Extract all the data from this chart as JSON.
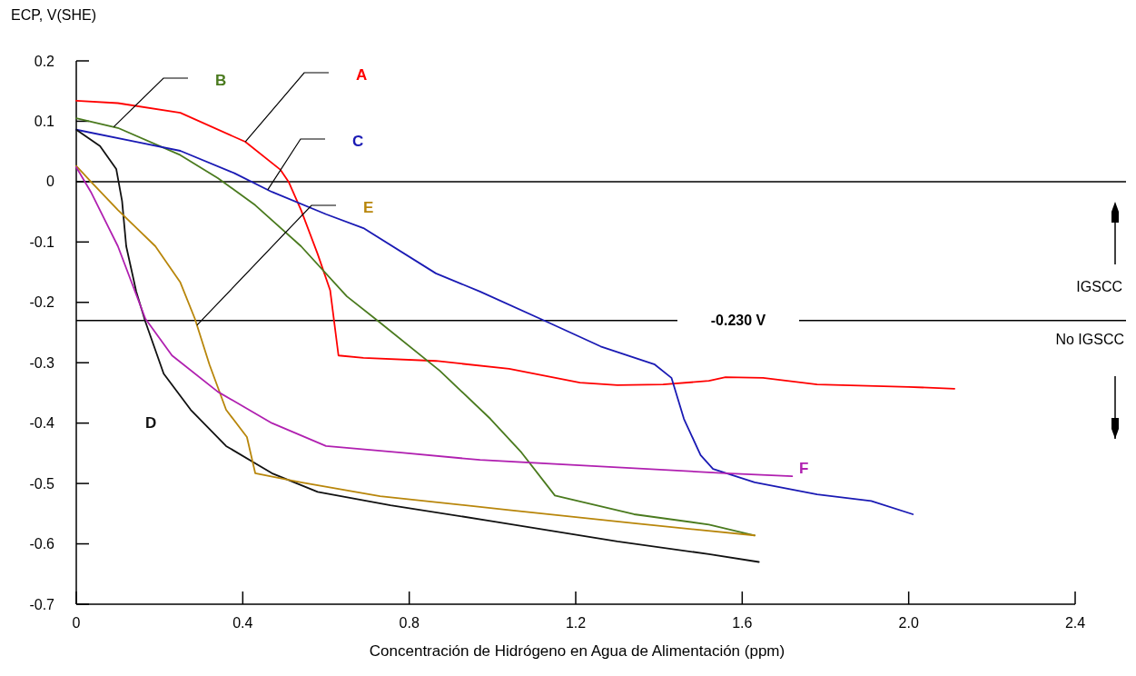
{
  "chart_data": {
    "type": "line",
    "xlabel": "Concentración de Hidrógeno en Agua de Alimentación (ppm)",
    "ylabel": "ECP, V(SHE)",
    "xlim": [
      0,
      2.4
    ],
    "xticks": [
      0,
      0.4,
      0.8,
      1.2,
      1.6,
      {
        "value": 2.0,
        "label": "2.0"
      },
      2.4
    ],
    "ylim": [
      -0.7,
      0.2
    ],
    "yticks": [
      0.2,
      0.1,
      0,
      -0.1,
      -0.2,
      -0.3,
      -0.4,
      -0.5,
      -0.6,
      -0.7
    ],
    "grid": false,
    "line_style": "solid",
    "marker": "none",
    "series": [
      {
        "name": "A",
        "color": "#ff0000",
        "x": [
          0,
          0.1,
          0.25,
          0.406,
          0.49,
          0.51,
          0.54,
          0.58,
          0.61,
          0.63,
          0.69,
          0.864,
          1.04,
          1.21,
          1.3,
          1.41,
          1.52,
          1.56,
          1.65,
          1.78,
          2.0,
          2.11
        ],
        "values": [
          0.134,
          0.13,
          0.114,
          0.066,
          0.02,
          0,
          -0.047,
          -0.12,
          -0.18,
          -0.288,
          -0.292,
          -0.297,
          -0.31,
          -0.333,
          -0.337,
          -0.336,
          -0.33,
          -0.324,
          -0.325,
          -0.336,
          -0.34,
          -0.343
        ]
      },
      {
        "name": "B",
        "color": "#4a7a1e",
        "x": [
          0,
          0.1,
          0.25,
          0.34,
          0.43,
          0.54,
          0.65,
          0.727,
          0.873,
          0.995,
          1.07,
          1.15,
          1.18,
          1.34,
          1.52,
          1.63
        ],
        "values": [
          0.105,
          0.089,
          0.044,
          0.006,
          -0.039,
          -0.107,
          -0.19,
          -0.232,
          -0.313,
          -0.393,
          -0.449,
          -0.52,
          -0.525,
          -0.551,
          -0.568,
          -0.586
        ]
      },
      {
        "name": "C",
        "color": "#1a1ab4",
        "x": [
          0,
          0.144,
          0.25,
          0.38,
          0.47,
          0.6,
          0.69,
          0.864,
          0.97,
          1.13,
          1.26,
          1.39,
          1.43,
          1.46,
          1.5,
          1.53,
          1.63,
          1.78,
          1.91,
          2.01
        ],
        "values": [
          0.086,
          0.066,
          0.051,
          0.014,
          -0.017,
          -0.054,
          -0.077,
          -0.152,
          -0.182,
          -0.232,
          -0.273,
          -0.303,
          -0.325,
          -0.393,
          -0.453,
          -0.476,
          -0.498,
          -0.518,
          -0.529,
          -0.551
        ]
      },
      {
        "name": "D",
        "color": "#111111",
        "x": [
          0,
          0.057,
          0.096,
          0.11,
          0.12,
          0.144,
          0.166,
          0.21,
          0.275,
          0.36,
          0.47,
          0.58,
          0.755,
          0.995,
          1.3,
          1.52,
          1.64
        ],
        "values": [
          0.086,
          0.059,
          0.021,
          -0.032,
          -0.107,
          -0.182,
          -0.232,
          -0.318,
          -0.378,
          -0.438,
          -0.483,
          -0.514,
          -0.536,
          -0.562,
          -0.596,
          -0.617,
          -0.63
        ]
      },
      {
        "name": "E",
        "color": "#b8860b",
        "x": [
          0,
          0.035,
          0.1,
          0.19,
          0.25,
          0.285,
          0.32,
          0.36,
          0.41,
          0.43,
          0.54,
          0.73,
          1.04,
          1.34,
          1.63
        ],
        "values": [
          0.026,
          0,
          -0.047,
          -0.107,
          -0.167,
          -0.227,
          -0.303,
          -0.378,
          -0.423,
          -0.483,
          -0.498,
          -0.521,
          -0.544,
          -0.566,
          -0.586
        ]
      },
      {
        "name": "F",
        "color": "#b020b0",
        "x": [
          0,
          0.035,
          0.1,
          0.166,
          0.23,
          0.34,
          0.47,
          0.6,
          0.78,
          0.97,
          1.24,
          1.56,
          1.72
        ],
        "values": [
          0.024,
          -0.017,
          -0.107,
          -0.227,
          -0.288,
          -0.348,
          -0.4,
          -0.438,
          -0.449,
          -0.461,
          -0.471,
          -0.483,
          -0.488
        ]
      }
    ],
    "ref_lines": [
      {
        "axis": "y",
        "value": 0,
        "color": "#000000"
      },
      {
        "axis": "y",
        "value": -0.23,
        "label": "-0.230 V",
        "color": "#000000"
      }
    ],
    "annotations": [
      "IGSCC",
      "No IGSCC"
    ]
  }
}
